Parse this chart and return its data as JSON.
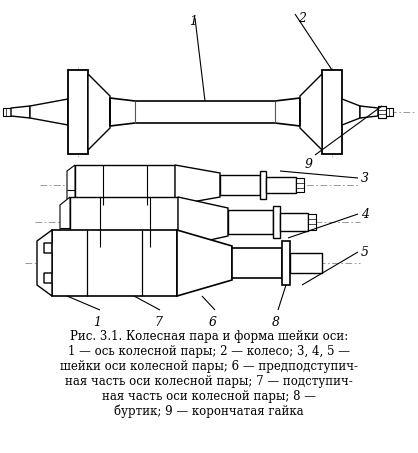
{
  "background_color": "#ffffff",
  "fig_width": 4.18,
  "fig_height": 4.53,
  "dpi": 100,
  "caption_lines": [
    "Рис. 3.1. Колесная пара и форма шейки оси:",
    "1 — ось колесной пары; 2 — колесо; 3, 4, 5 —",
    "шейки оси колесной пары; 6 — предподступич-",
    "ная часть оси колесной пары; 7 — подступич-",
    "ная часть оси колесной пары; 8 —",
    "буртик; 9 — корончатая гайка"
  ]
}
